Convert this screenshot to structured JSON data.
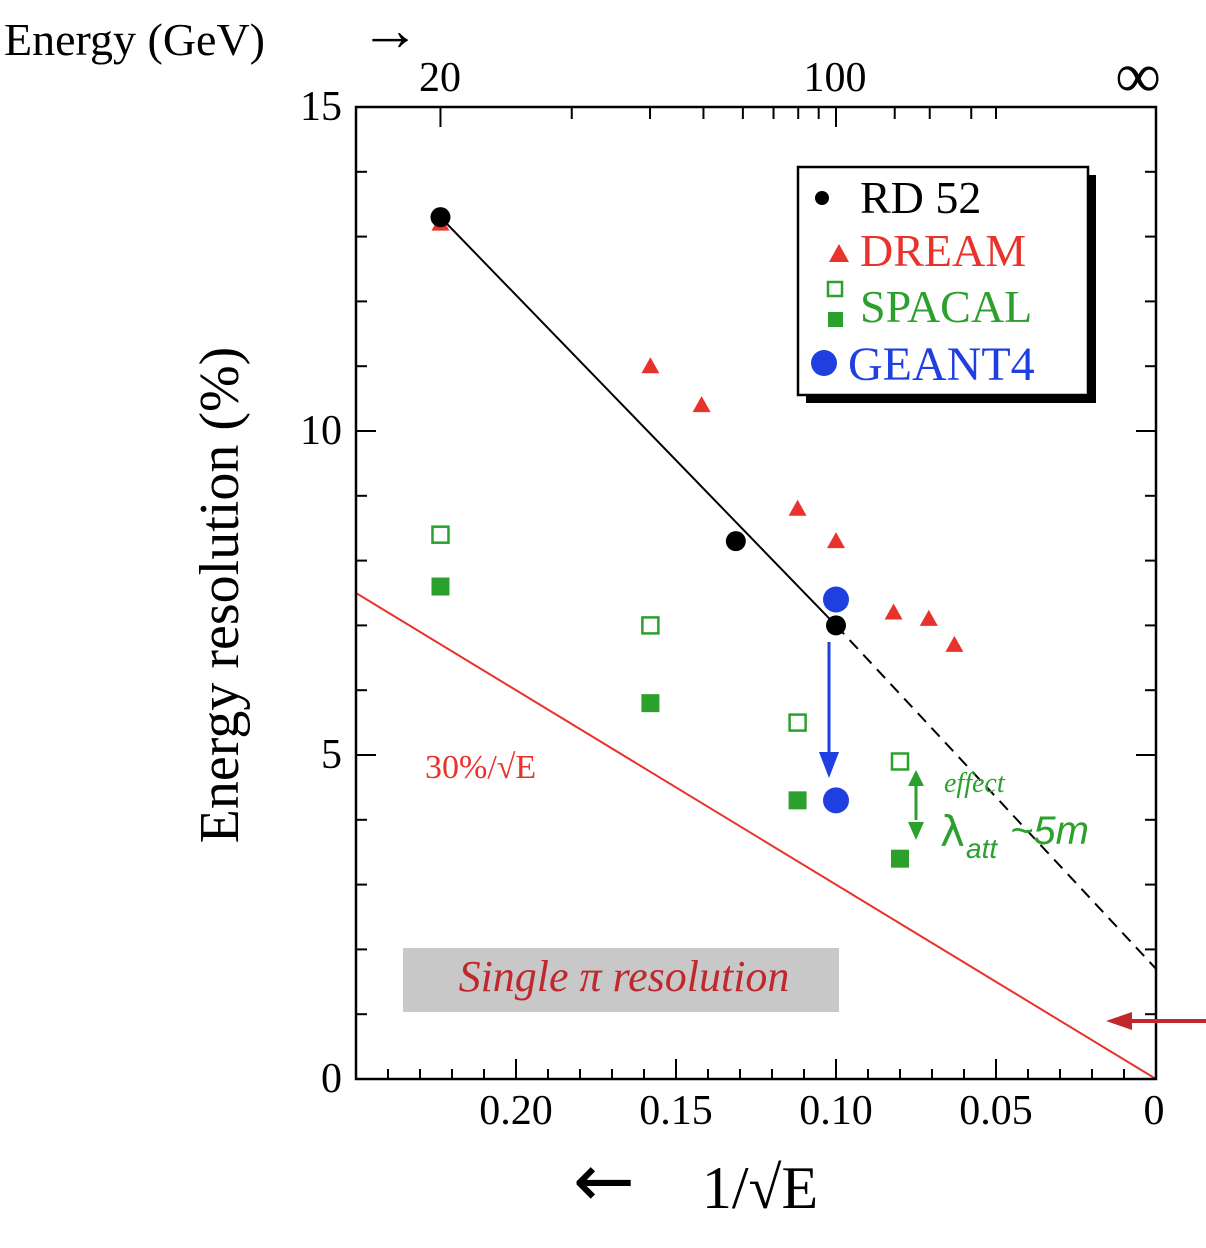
{
  "chart_data": {
    "type": "scatter",
    "title": "",
    "xlabel": "1/√E",
    "ylabel": "Energy resolution (%)",
    "top_axis_label": "Energy (GeV)",
    "x_reversed": true,
    "xlim": [
      0.25,
      0.0
    ],
    "ylim": [
      0,
      15
    ],
    "x_ticks": [
      {
        "value": 0.2,
        "label": "0.20"
      },
      {
        "value": 0.15,
        "label": "0.15"
      },
      {
        "value": 0.1,
        "label": "0.10"
      },
      {
        "value": 0.05,
        "label": "0.05"
      },
      {
        "value": 0.0,
        "label": "0"
      }
    ],
    "y_ticks": [
      {
        "value": 0,
        "label": "0"
      },
      {
        "value": 5,
        "label": "5"
      },
      {
        "value": 10,
        "label": "10"
      },
      {
        "value": 15,
        "label": "15"
      }
    ],
    "top_ticks": [
      {
        "energy_gev": 20,
        "label": "20"
      },
      {
        "energy_gev": 100,
        "label": "100"
      },
      {
        "energy_gev": "infinity",
        "label": "∞"
      }
    ],
    "legend_position": "top-right",
    "series": [
      {
        "name": "RD 52",
        "marker": "filled-circle",
        "color": "#000000",
        "points": [
          [
            0.2236,
            13.3
          ],
          [
            0.1313,
            8.3
          ],
          [
            0.1,
            7.0
          ]
        ]
      },
      {
        "name": "DREAM",
        "marker": "filled-triangle",
        "color": "#e8322c",
        "points": [
          [
            0.2236,
            13.2
          ],
          [
            0.158,
            11.0
          ],
          [
            0.142,
            10.4
          ],
          [
            0.112,
            8.8
          ],
          [
            0.1,
            8.3
          ],
          [
            0.082,
            7.2
          ],
          [
            0.071,
            7.1
          ],
          [
            0.063,
            6.7
          ]
        ]
      },
      {
        "name": "SPACAL",
        "marker": "open-square",
        "color": "#2ca02c",
        "points": [
          [
            0.2236,
            8.4
          ],
          [
            0.158,
            7.0
          ],
          [
            0.112,
            5.5
          ],
          [
            0.08,
            4.9
          ]
        ]
      },
      {
        "name": "",
        "marker": "filled-square",
        "color": "#2ca02c",
        "points": [
          [
            0.2236,
            7.6
          ],
          [
            0.158,
            5.8
          ],
          [
            0.112,
            4.3
          ],
          [
            0.08,
            3.4
          ]
        ]
      },
      {
        "name": "GEANT4",
        "marker": "large-filled-circle",
        "color": "#1f3fe0",
        "points": [
          [
            0.1,
            7.4
          ],
          [
            0.1,
            4.3
          ]
        ]
      }
    ],
    "fit_line": {
      "color": "#000000",
      "solid_from": [
        0.2236,
        13.3
      ],
      "solid_to": [
        0.1,
        7.0
      ],
      "dashed_to": [
        0.0,
        1.7
      ]
    },
    "reference_line": {
      "color": "#e8322c",
      "label": "30%/√E",
      "from": [
        0.25,
        7.5
      ],
      "to": [
        0.0,
        0.0
      ]
    },
    "annotations": {
      "single_pi": "Single π resolution",
      "effect": "effect",
      "lambda": "λ",
      "lambda_sub": "att",
      "lambda_value": "~5m",
      "x_arrow": "←",
      "top_arrow": "→"
    }
  },
  "colors": {
    "axis": "#000000",
    "box_fill": "#c8c8c8",
    "pi_text": "#c0282d",
    "side_arrow": "#c0282d"
  }
}
